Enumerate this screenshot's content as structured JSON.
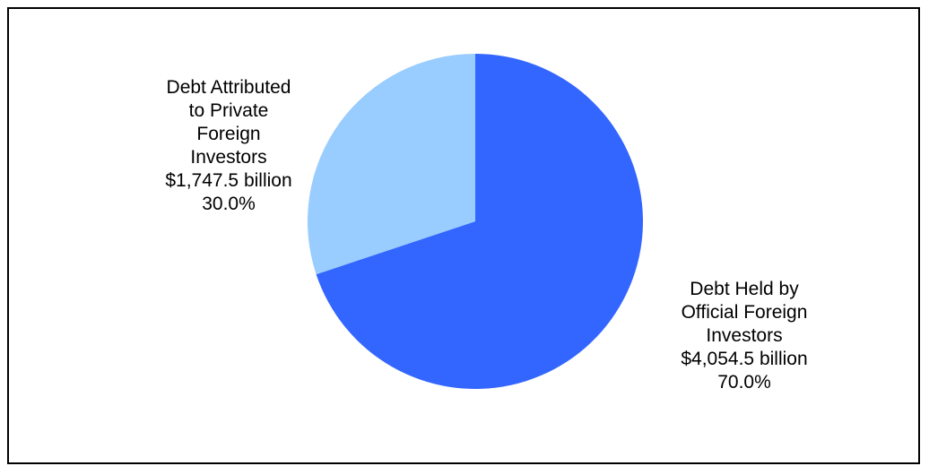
{
  "chart_data": {
    "type": "pie",
    "title": "",
    "slices": [
      {
        "label_lines": [
          "Debt Held by",
          "Official Foreign",
          "Investors"
        ],
        "amount": "$4,054.5 billion",
        "percent_label": "70.0%",
        "value": 4054.5,
        "percent": 70.0,
        "color": "#3366ff"
      },
      {
        "label_lines": [
          "Debt Attributed",
          "to Private",
          "Foreign",
          "Investors"
        ],
        "amount": "$1,747.5 billion",
        "percent_label": "30.0%",
        "value": 1747.5,
        "percent": 30.0,
        "color": "#99ccff"
      }
    ],
    "start_angle": "12 o'clock",
    "direction": "clockwise",
    "legend": "none"
  }
}
